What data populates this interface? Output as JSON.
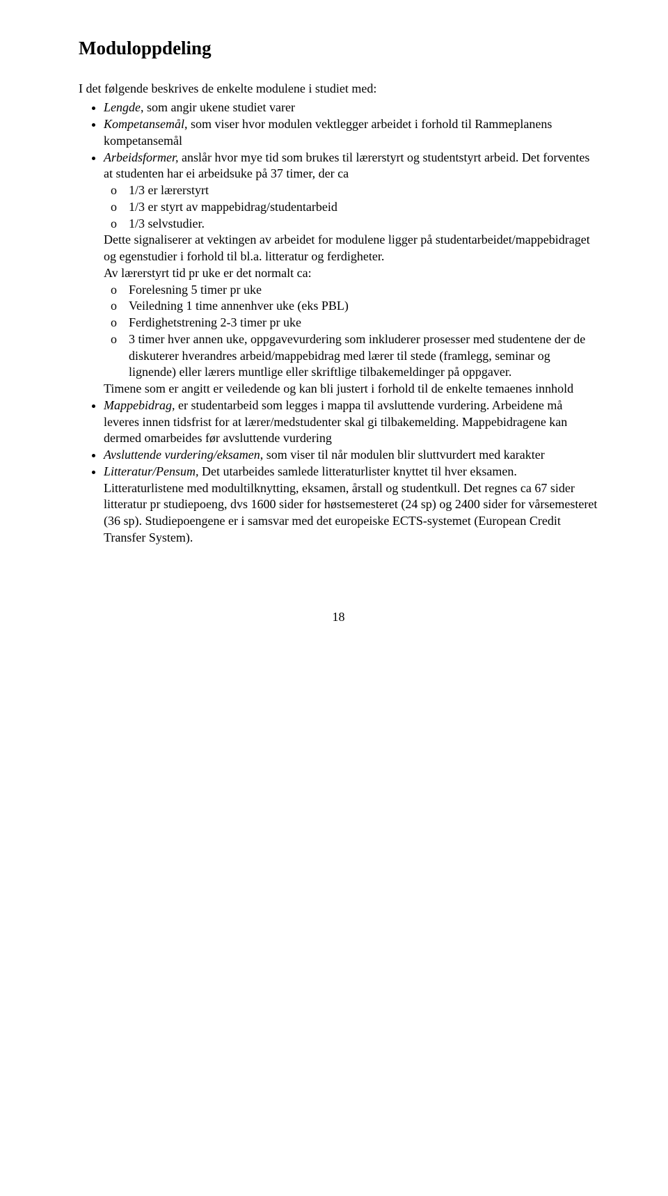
{
  "title": "Moduloppdeling",
  "intro": "I det følgende beskrives de enkelte modulene i studiet med:",
  "bullets": {
    "b1": {
      "term": "Lengde",
      "rest": ", som angir ukene studiet varer"
    },
    "b2": {
      "term": "Kompetansemål",
      "rest": ", som viser hvor modulen vektlegger arbeidet i forhold til Rammeplanens kompetansemål"
    },
    "b3": {
      "term": "Arbeidsformer,",
      "rest1": " anslår hvor mye tid som brukes til lærerstyrt og studentstyrt arbeid. Det forventes at studenten har ei arbeidsuke på 37 timer, der ca",
      "sub1": "1/3 er lærerstyrt",
      "sub2": "1/3 er styrt av mappebidrag/studentarbeid",
      "sub3": "1/3 selvstudier.",
      "mid1": "Dette signaliserer at vektingen av arbeidet for modulene ligger på studentarbeidet/mappebidraget og egenstudier i forhold til bl.a. litteratur og ferdigheter.",
      "mid2": "Av lærerstyrt tid pr uke er det normalt ca:",
      "sub4": "Forelesning 5 timer pr uke",
      "sub5": "Veiledning 1 time annenhver uke (eks PBL)",
      "sub6": "Ferdighetstrening 2-3 timer pr uke",
      "sub7": "3 timer hver annen uke, oppgavevurdering som inkluderer prosesser med studentene der de diskuterer hverandres arbeid/mappebidrag med lærer til stede (framlegg, seminar og lignende) eller lærers muntlige eller skriftlige tilbakemeldinger på oppgaver.",
      "tail": "Timene som er angitt er veiledende og kan bli justert i forhold til de enkelte temaenes innhold"
    },
    "b4": {
      "term": "Mappebidrag,",
      "rest": " er studentarbeid som legges i mappa til avsluttende vurdering. Arbeidene må leveres innen tidsfrist for at lærer/medstudenter skal gi tilbakemelding. Mappebidragene kan dermed omarbeides før avsluttende vurdering"
    },
    "b5": {
      "term": "Avsluttende vurdering/eksamen",
      "rest": ", som viser til når modulen blir sluttvurdert med karakter"
    },
    "b6": {
      "term": "Litteratur/Pensum,",
      "rest": " Det utarbeides samlede litteraturlister knyttet til hver eksamen. Litteraturlistene med modultilknytting, eksamen, årstall og studentkull. Det regnes ca 67 sider litteratur pr studiepoeng, dvs 1600 sider for høstsemesteret (24 sp) og 2400 sider for vårsemesteret (36 sp). Studiepoengene er i samsvar med det europeiske ECTS-systemet (European Credit Transfer System)."
    }
  },
  "page_number": "18"
}
